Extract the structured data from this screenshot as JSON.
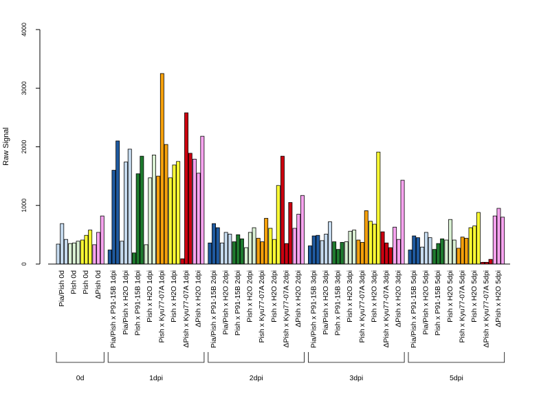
{
  "chart_data": {
    "type": "bar",
    "ylabel": "Raw Signal",
    "ylim": [
      0,
      4000
    ],
    "yticks": [
      0,
      1000,
      2000,
      3000,
      4000
    ],
    "colors": {
      "Pia/Pish": "#c6dbef",
      "P91-15B": "#1f5aa0",
      "Pia/Pish x H2O": "#c6dbef",
      "Pish P91": "#1e7a2e",
      "Pish": "#d9f0d3",
      "Pish H2O": "#d9f0d3",
      "Kyu77-07A": "#f5a00b",
      "Pish H2O yellow": "#ffff33",
      "ΔPish Kyu": "#cc0010",
      "ΔPish": "#f7a3ef"
    },
    "groups": [
      {
        "label": "0d",
        "categories": [
          {
            "label": "Pia/Pish 0d",
            "colors": [
              "Pia/Pish",
              "Pia/Pish",
              "Pia/Pish"
            ],
            "values": [
              340,
              690,
              420
            ]
          },
          {
            "label": "Pish 0d",
            "colors": [
              "Pish",
              "Pish",
              "Pish"
            ],
            "values": [
              350,
              360,
              390
            ]
          },
          {
            "label": "Pish 0d",
            "colors": [
              "Pish H2O yellow",
              "Pish H2O yellow",
              "Pish H2O yellow"
            ],
            "values": [
              410,
              490,
              580
            ]
          },
          {
            "label": "ΔPish 0d",
            "colors": [
              "ΔPish",
              "ΔPish",
              "ΔPish"
            ],
            "values": [
              330,
              540,
              820
            ]
          }
        ]
      },
      {
        "label": "1dpi",
        "categories": [
          {
            "label": "Pia/Pish x P91-15B 1dpi",
            "colors": [
              "P91-15B",
              "P91-15B",
              "P91-15B"
            ],
            "values": [
              240,
              1600,
              2100
            ]
          },
          {
            "label": "Pia/Pish x H2O 1dpi",
            "colors": [
              "Pia/Pish x H2O",
              "Pia/Pish x H2O",
              "Pia/Pish x H2O"
            ],
            "values": [
              390,
              1740,
              1960
            ]
          },
          {
            "label": "Pish x P91-15B 1dpi",
            "colors": [
              "Pish P91",
              "Pish P91",
              "Pish P91"
            ],
            "values": [
              190,
              1540,
              1840
            ]
          },
          {
            "label": "Pish x H2O 1dpi",
            "colors": [
              "Pish H2O",
              "Pish H2O",
              "Pish H2O"
            ],
            "values": [
              330,
              1470,
              1860
            ]
          },
          {
            "label": "Pish x Kyu77-07A 1dpi",
            "colors": [
              "Kyu77-07A",
              "Kyu77-07A",
              "Kyu77-07A"
            ],
            "values": [
              1500,
              3250,
              2040
            ]
          },
          {
            "label": "Pish x H2O 1dpi",
            "colors": [
              "Pish H2O yellow",
              "Pish H2O yellow",
              "Pish H2O yellow"
            ],
            "values": [
              1470,
              1690,
              1750
            ]
          },
          {
            "label": "ΔPish x Kyu77-07A 1dpi",
            "colors": [
              "ΔPish Kyu",
              "ΔPish Kyu",
              "ΔPish Kyu"
            ],
            "values": [
              90,
              2580,
              1890
            ]
          },
          {
            "label": "ΔPish x H2O 1dpi",
            "colors": [
              "ΔPish",
              "ΔPish",
              "ΔPish"
            ],
            "values": [
              1790,
              1550,
              2180
            ]
          }
        ]
      },
      {
        "label": "2dpi",
        "categories": [
          {
            "label": "Pia/Pish x P91-15B 2dpi",
            "colors": [
              "P91-15B",
              "P91-15B",
              "P91-15B"
            ],
            "values": [
              360,
              690,
              620
            ]
          },
          {
            "label": "Pia/Pish x H2O 2dpi",
            "colors": [
              "Pia/Pish x H2O",
              "Pia/Pish x H2O",
              "Pia/Pish x H2O"
            ],
            "values": [
              360,
              540,
              510
            ]
          },
          {
            "label": "Pish x P91-15B 2dpi",
            "colors": [
              "Pish P91",
              "Pish P91",
              "Pish P91"
            ],
            "values": [
              380,
              500,
              430
            ]
          },
          {
            "label": "Pish x H2O 2dpi",
            "colors": [
              "Pish H2O",
              "Pish H2O",
              "Pish H2O"
            ],
            "values": [
              280,
              540,
              620
            ]
          },
          {
            "label": "Pish x Kyu77-07A 2dpi",
            "colors": [
              "Kyu77-07A",
              "Kyu77-07A",
              "Kyu77-07A"
            ],
            "values": [
              440,
              380,
              780
            ]
          },
          {
            "label": "Pish x H2O 2dpi",
            "colors": [
              "Pish H2O yellow",
              "Pish H2O yellow",
              "Pish H2O yellow"
            ],
            "values": [
              610,
              420,
              1340
            ]
          },
          {
            "label": "ΔPish x Kyu77-07A 2dpi",
            "colors": [
              "ΔPish Kyu",
              "ΔPish Kyu",
              "ΔPish Kyu"
            ],
            "values": [
              1840,
              350,
              1050
            ]
          },
          {
            "label": "ΔPish x H2O 2dpi",
            "colors": [
              "ΔPish",
              "ΔPish",
              "ΔPish"
            ],
            "values": [
              610,
              850,
              1170
            ]
          }
        ]
      },
      {
        "label": "3dpi",
        "categories": [
          {
            "label": "Pia/Pish x P91-15B 3dpi",
            "colors": [
              "P91-15B",
              "P91-15B",
              "P91-15B"
            ],
            "values": [
              310,
              480,
              490
            ]
          },
          {
            "label": "Pia/Pish x H2O 3dpi",
            "colors": [
              "Pia/Pish x H2O",
              "Pia/Pish x H2O",
              "Pia/Pish x H2O"
            ],
            "values": [
              400,
              510,
              720
            ]
          },
          {
            "label": "Pish x P91-15B 3dpi",
            "colors": [
              "Pish P91",
              "Pish P91",
              "Pish P91"
            ],
            "values": [
              380,
              250,
              370
            ]
          },
          {
            "label": "Pish x H2O 3dpi",
            "colors": [
              "Pish H2O",
              "Pish H2O",
              "Pish H2O"
            ],
            "values": [
              380,
              560,
              580
            ]
          },
          {
            "label": "Pish x Kyu77-07A 3dpi",
            "colors": [
              "Kyu77-07A",
              "Kyu77-07A",
              "Kyu77-07A"
            ],
            "values": [
              410,
              370,
              910
            ]
          },
          {
            "label": "Pish x H2O 3dpi",
            "colors": [
              "Pish H2O yellow",
              "Pish H2O yellow",
              "Pish H2O yellow"
            ],
            "values": [
              730,
              680,
              1910
            ]
          },
          {
            "label": "ΔPish x Kyu77-07A 3dpi",
            "colors": [
              "ΔPish Kyu",
              "ΔPish Kyu",
              "ΔPish Kyu"
            ],
            "values": [
              550,
              360,
              280
            ]
          },
          {
            "label": "ΔPish x H2O 3dpi",
            "colors": [
              "ΔPish",
              "ΔPish",
              "ΔPish"
            ],
            "values": [
              630,
              420,
              1430
            ]
          }
        ]
      },
      {
        "label": "5dpi",
        "categories": [
          {
            "label": "Pia/Pish x P91-15B 5dpi",
            "colors": [
              "P91-15B",
              "P91-15B",
              "P91-15B"
            ],
            "values": [
              240,
              480,
              450
            ]
          },
          {
            "label": "Pia/Pish x H2O 5dpi",
            "colors": [
              "Pia/Pish x H2O",
              "Pia/Pish x H2O",
              "Pia/Pish x H2O"
            ],
            "values": [
              290,
              540,
              450
            ]
          },
          {
            "label": "Pish x P91-15B 5dpi",
            "colors": [
              "Pish P91",
              "Pish P91",
              "Pish P91"
            ],
            "values": [
              250,
              350,
              430
            ]
          },
          {
            "label": "Pish x H2O 5dpi",
            "colors": [
              "Pish H2O",
              "Pish H2O",
              "Pish H2O"
            ],
            "values": [
              410,
              760,
              410
            ]
          },
          {
            "label": "Pish x Kyu77-07A 5dpi",
            "colors": [
              "Kyu77-07A",
              "Kyu77-07A",
              "Kyu77-07A"
            ],
            "values": [
              270,
              460,
              440
            ]
          },
          {
            "label": "Pish x H2O 5dpi",
            "colors": [
              "Pish H2O yellow",
              "Pish H2O yellow",
              "Pish H2O yellow"
            ],
            "values": [
              620,
              650,
              880
            ]
          },
          {
            "label": "ΔPish x Kyu77-07A 5dpi",
            "colors": [
              "ΔPish Kyu",
              "ΔPish Kyu",
              "ΔPish Kyu"
            ],
            "values": [
              30,
              30,
              80
            ]
          },
          {
            "label": "ΔPish x H2O 5dpi",
            "colors": [
              "ΔPish",
              "ΔPish",
              "ΔPish"
            ],
            "values": [
              820,
              950,
              800
            ]
          }
        ]
      }
    ]
  }
}
